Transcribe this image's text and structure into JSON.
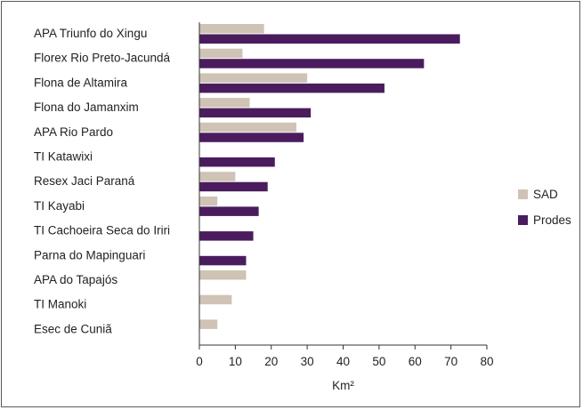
{
  "chart_data": {
    "type": "bar",
    "orientation": "horizontal",
    "categories": [
      "APA Triunfo do Xingu",
      "Florex Rio Preto-Jacundá",
      "Flona de Altamira",
      "Flona do Jamanxim",
      "APA Rio Pardo",
      "TI Katawixi",
      "Resex Jaci Paraná",
      "TI Kayabi",
      "TI Cachoeira Seca do Iriri",
      "Parna do Mapinguari",
      "APA do Tapajós",
      "TI Manoki",
      "Esec de Cuniã"
    ],
    "series": [
      {
        "name": "SAD",
        "color": "#cfc3b5",
        "values": [
          18,
          12,
          30,
          14,
          27,
          0,
          10,
          5,
          0,
          0,
          13,
          9,
          5
        ]
      },
      {
        "name": "Prodes",
        "color": "#4a1c5e",
        "values": [
          72.5,
          62.5,
          51.5,
          31,
          29,
          21,
          19,
          16.5,
          15,
          13,
          0,
          0,
          0
        ]
      }
    ],
    "xlabel": "Km²",
    "xlim": [
      0,
      80
    ],
    "xticks": [
      "0",
      "10",
      "20",
      "30",
      "40",
      "50",
      "60",
      "70",
      "80"
    ],
    "grid": false,
    "legend_position": "right"
  }
}
